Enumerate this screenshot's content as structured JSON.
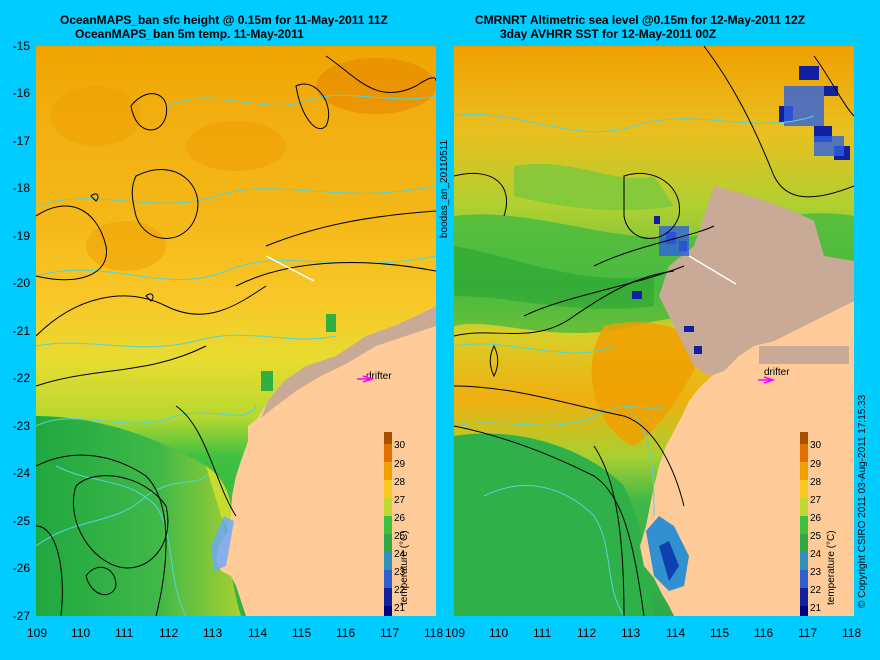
{
  "left": {
    "title1": "OceanMAPS_ban sfc height @ 0.15m for 11-May-2011 11Z",
    "title2": "OceanMAPS_ban 5m temp. 11-May-2011",
    "drifter": "drifter"
  },
  "right": {
    "title1": "CMRNRT Altimetric sea level  @0.15m  for 12-May-2011 12Z",
    "title2": "3day AVHRR SST for 12-May-2011 00Z",
    "drifter": "drifter"
  },
  "axes": {
    "lat": [
      "-15",
      "-16",
      "-17",
      "-18",
      "-19",
      "-20",
      "-21",
      "-22",
      "-23",
      "-24",
      "-25",
      "-26",
      "-27"
    ],
    "lon": [
      "109",
      "110",
      "111",
      "112",
      "113",
      "114",
      "115",
      "116",
      "117",
      "118"
    ]
  },
  "colorbar": {
    "title": "temperature (°C)",
    "labels": [
      "30",
      "29",
      "28",
      "27",
      "26",
      "25",
      "24",
      "23",
      "22",
      "21"
    ]
  },
  "side_text": {
    "middle": "boodas_an_20110511",
    "right": "© Copyright CSIRO 2011   03-Aug-2011 17:15:33"
  },
  "colors": {
    "background": "#00ccff",
    "land": "#ffcc99",
    "cloud": "#c8aa96",
    "contour": "#000000",
    "isotherm": "#55d4d4",
    "drifter_marker": "#ff00ff"
  }
}
